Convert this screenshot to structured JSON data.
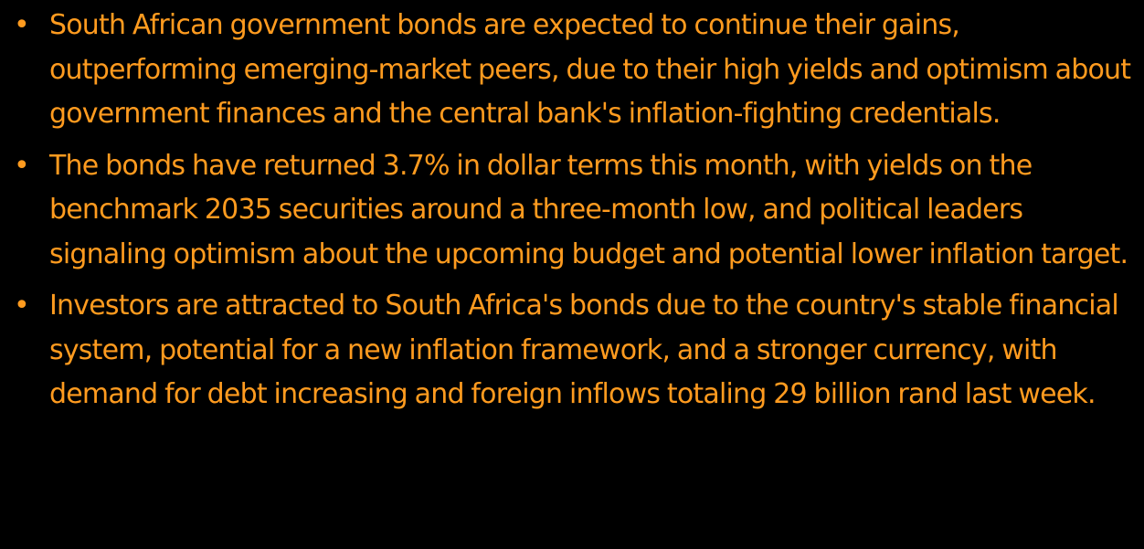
{
  "colors": {
    "background": "#000000",
    "text": "#FF9B1F"
  },
  "summary": {
    "bullet_symbol": "•",
    "bullets": [
      {
        "text": "South African government bonds are expected to continue their gains, outperforming emerging-market peers, due to their high yields and optimism about government finances and the central bank's inflation-fighting credentials."
      },
      {
        "text": "The bonds have returned 3.7% in dollar terms this month, with yields on the benchmark 2035 securities around a three-month low, and political leaders signaling optimism about the upcoming budget and potential lower inflation target."
      },
      {
        "text": "Investors are attracted to South Africa's bonds due to the country's stable financial system, potential for a new inflation framework, and a stronger currency, with demand for debt increasing and foreign inflows totaling 29 billion rand last week."
      }
    ]
  }
}
